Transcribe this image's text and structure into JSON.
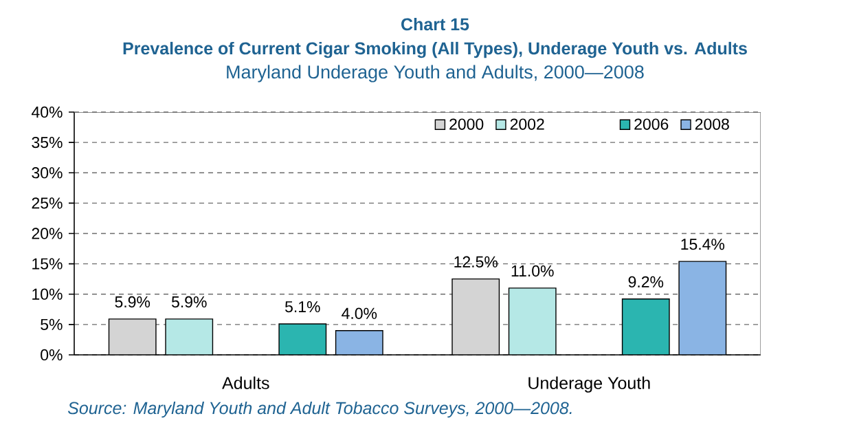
{
  "chart_data": {
    "type": "bar",
    "title": "Prevalence of Current Cigar Smoking (All Types), Underage Youth vs. Adults",
    "subtitle": "Maryland Underage Youth and Adults, 2000—2008",
    "annotations": [
      "Chart 15",
      "Source: Maryland Youth and Adult Tobacco Surveys, 2000—2008."
    ],
    "categories": [
      "Adults",
      "Underage Youth"
    ],
    "series": [
      {
        "name": "2000",
        "color": "#d4d4d4",
        "values": [
          5.9,
          12.5
        ],
        "value_labels": [
          "5.9%",
          "12.5%"
        ]
      },
      {
        "name": "2002",
        "color": "#b5e8e6",
        "values": [
          5.9,
          11.0
        ],
        "value_labels": [
          "5.9%",
          "11.0%"
        ]
      },
      {
        "values": [
          null,
          null
        ]
      },
      {
        "name": "2006",
        "color": "#2bb5b0",
        "values": [
          5.1,
          9.2
        ],
        "value_labels": [
          "5.1%",
          "9.2%"
        ]
      },
      {
        "name": "2008",
        "color": "#8ab4e4",
        "values": [
          4.0,
          15.4
        ],
        "value_labels": [
          "4.0%",
          "15.4%"
        ]
      }
    ],
    "ylim": [
      0,
      40
    ],
    "yticks": [
      {
        "value": 0,
        "label": "0%"
      },
      {
        "value": 5,
        "label": "5%"
      },
      {
        "value": 10,
        "label": "10%"
      },
      {
        "value": 15,
        "label": "15%"
      },
      {
        "value": 20,
        "label": "20%"
      },
      {
        "value": 25,
        "label": "25%"
      },
      {
        "value": 30,
        "label": "30%"
      },
      {
        "value": 35,
        "label": "35%"
      },
      {
        "value": 40,
        "label": "40%"
      }
    ],
    "grid": "y",
    "legend": "top right"
  }
}
